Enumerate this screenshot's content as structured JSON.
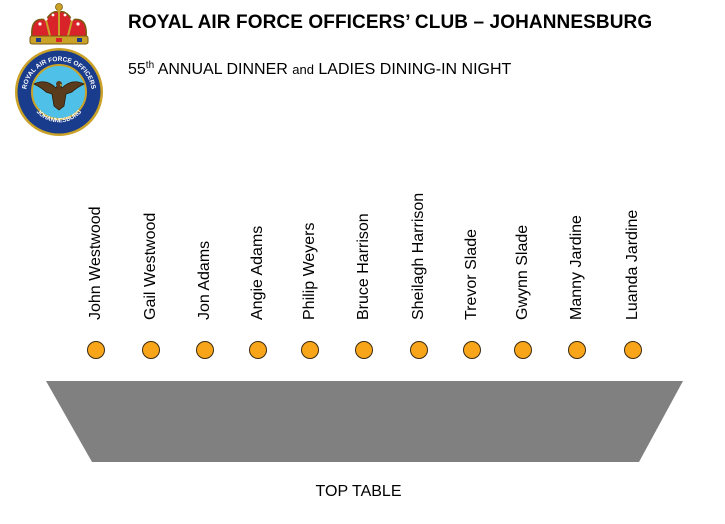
{
  "header": {
    "title": "ROYAL AIR FORCE OFFICERS’ CLUB – JOHANNESBURG",
    "subtitle_number": "55",
    "subtitle_suffix": "th",
    "subtitle_part1": " ANNUAL DINNER ",
    "subtitle_and": "and",
    "subtitle_part2": " LADIES DINING-IN NIGHT"
  },
  "emblem": {
    "ring_text_top": "ROYAL AIR FORCE OFFICERS",
    "ring_text_left": "ROYAL",
    "ring_text_right": "CLUB",
    "ring_text_bottom": "JOHANNESBURG",
    "ring_color": "#1a3c8c",
    "inner_color": "#4fc1e9",
    "crown_color": "#d8232a",
    "gold_color": "#c9a227"
  },
  "guests": [
    "John Westwood",
    "Gail Westwood",
    "Jon Adams",
    "Angie Adams",
    "Philip Weyers",
    "Bruce Harrison",
    "Sheilagh Harrison",
    "Trevor Slade",
    "Gwynn Slade",
    "Manny Jardine",
    "Luanda Jardine"
  ],
  "seat_color": "#f8a51a",
  "table": {
    "label": "TOP TABLE",
    "color": "#808080"
  }
}
